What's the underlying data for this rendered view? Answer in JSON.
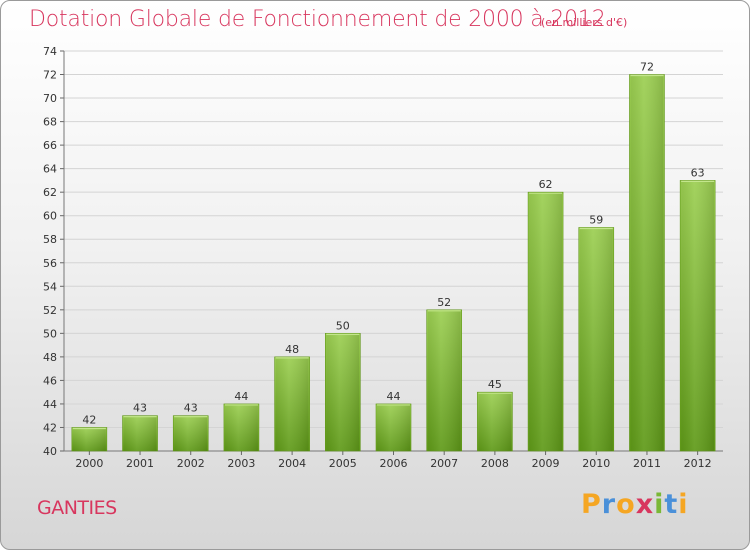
{
  "chart_data": {
    "type": "bar",
    "title": "Dotation Globale de Fonctionnement de 2000 à 2012",
    "subtitle": "(en milliers d'€)",
    "categories": [
      "2000",
      "2001",
      "2002",
      "2003",
      "2004",
      "2005",
      "2006",
      "2007",
      "2008",
      "2009",
      "2010",
      "2011",
      "2012"
    ],
    "values": [
      42,
      43,
      43,
      44,
      48,
      50,
      44,
      52,
      45,
      62,
      59,
      72,
      63
    ],
    "xlabel": "",
    "ylabel": "",
    "ylim": [
      40,
      74
    ],
    "yticks": [
      40,
      42,
      44,
      46,
      48,
      50,
      52,
      54,
      56,
      58,
      60,
      62,
      64,
      66,
      68,
      70,
      72,
      74
    ],
    "grid": true,
    "bar_color": "#7ab836"
  },
  "footer": {
    "commune": "GANTIES",
    "logo_letters": [
      "P",
      "r",
      "o",
      "x",
      "i",
      "t",
      "i"
    ],
    "logo_colors": [
      "#f5a623",
      "#4a90d9",
      "#f5a623",
      "#d8365e",
      "#7ab836",
      "#4a90d9",
      "#f5a623"
    ]
  }
}
